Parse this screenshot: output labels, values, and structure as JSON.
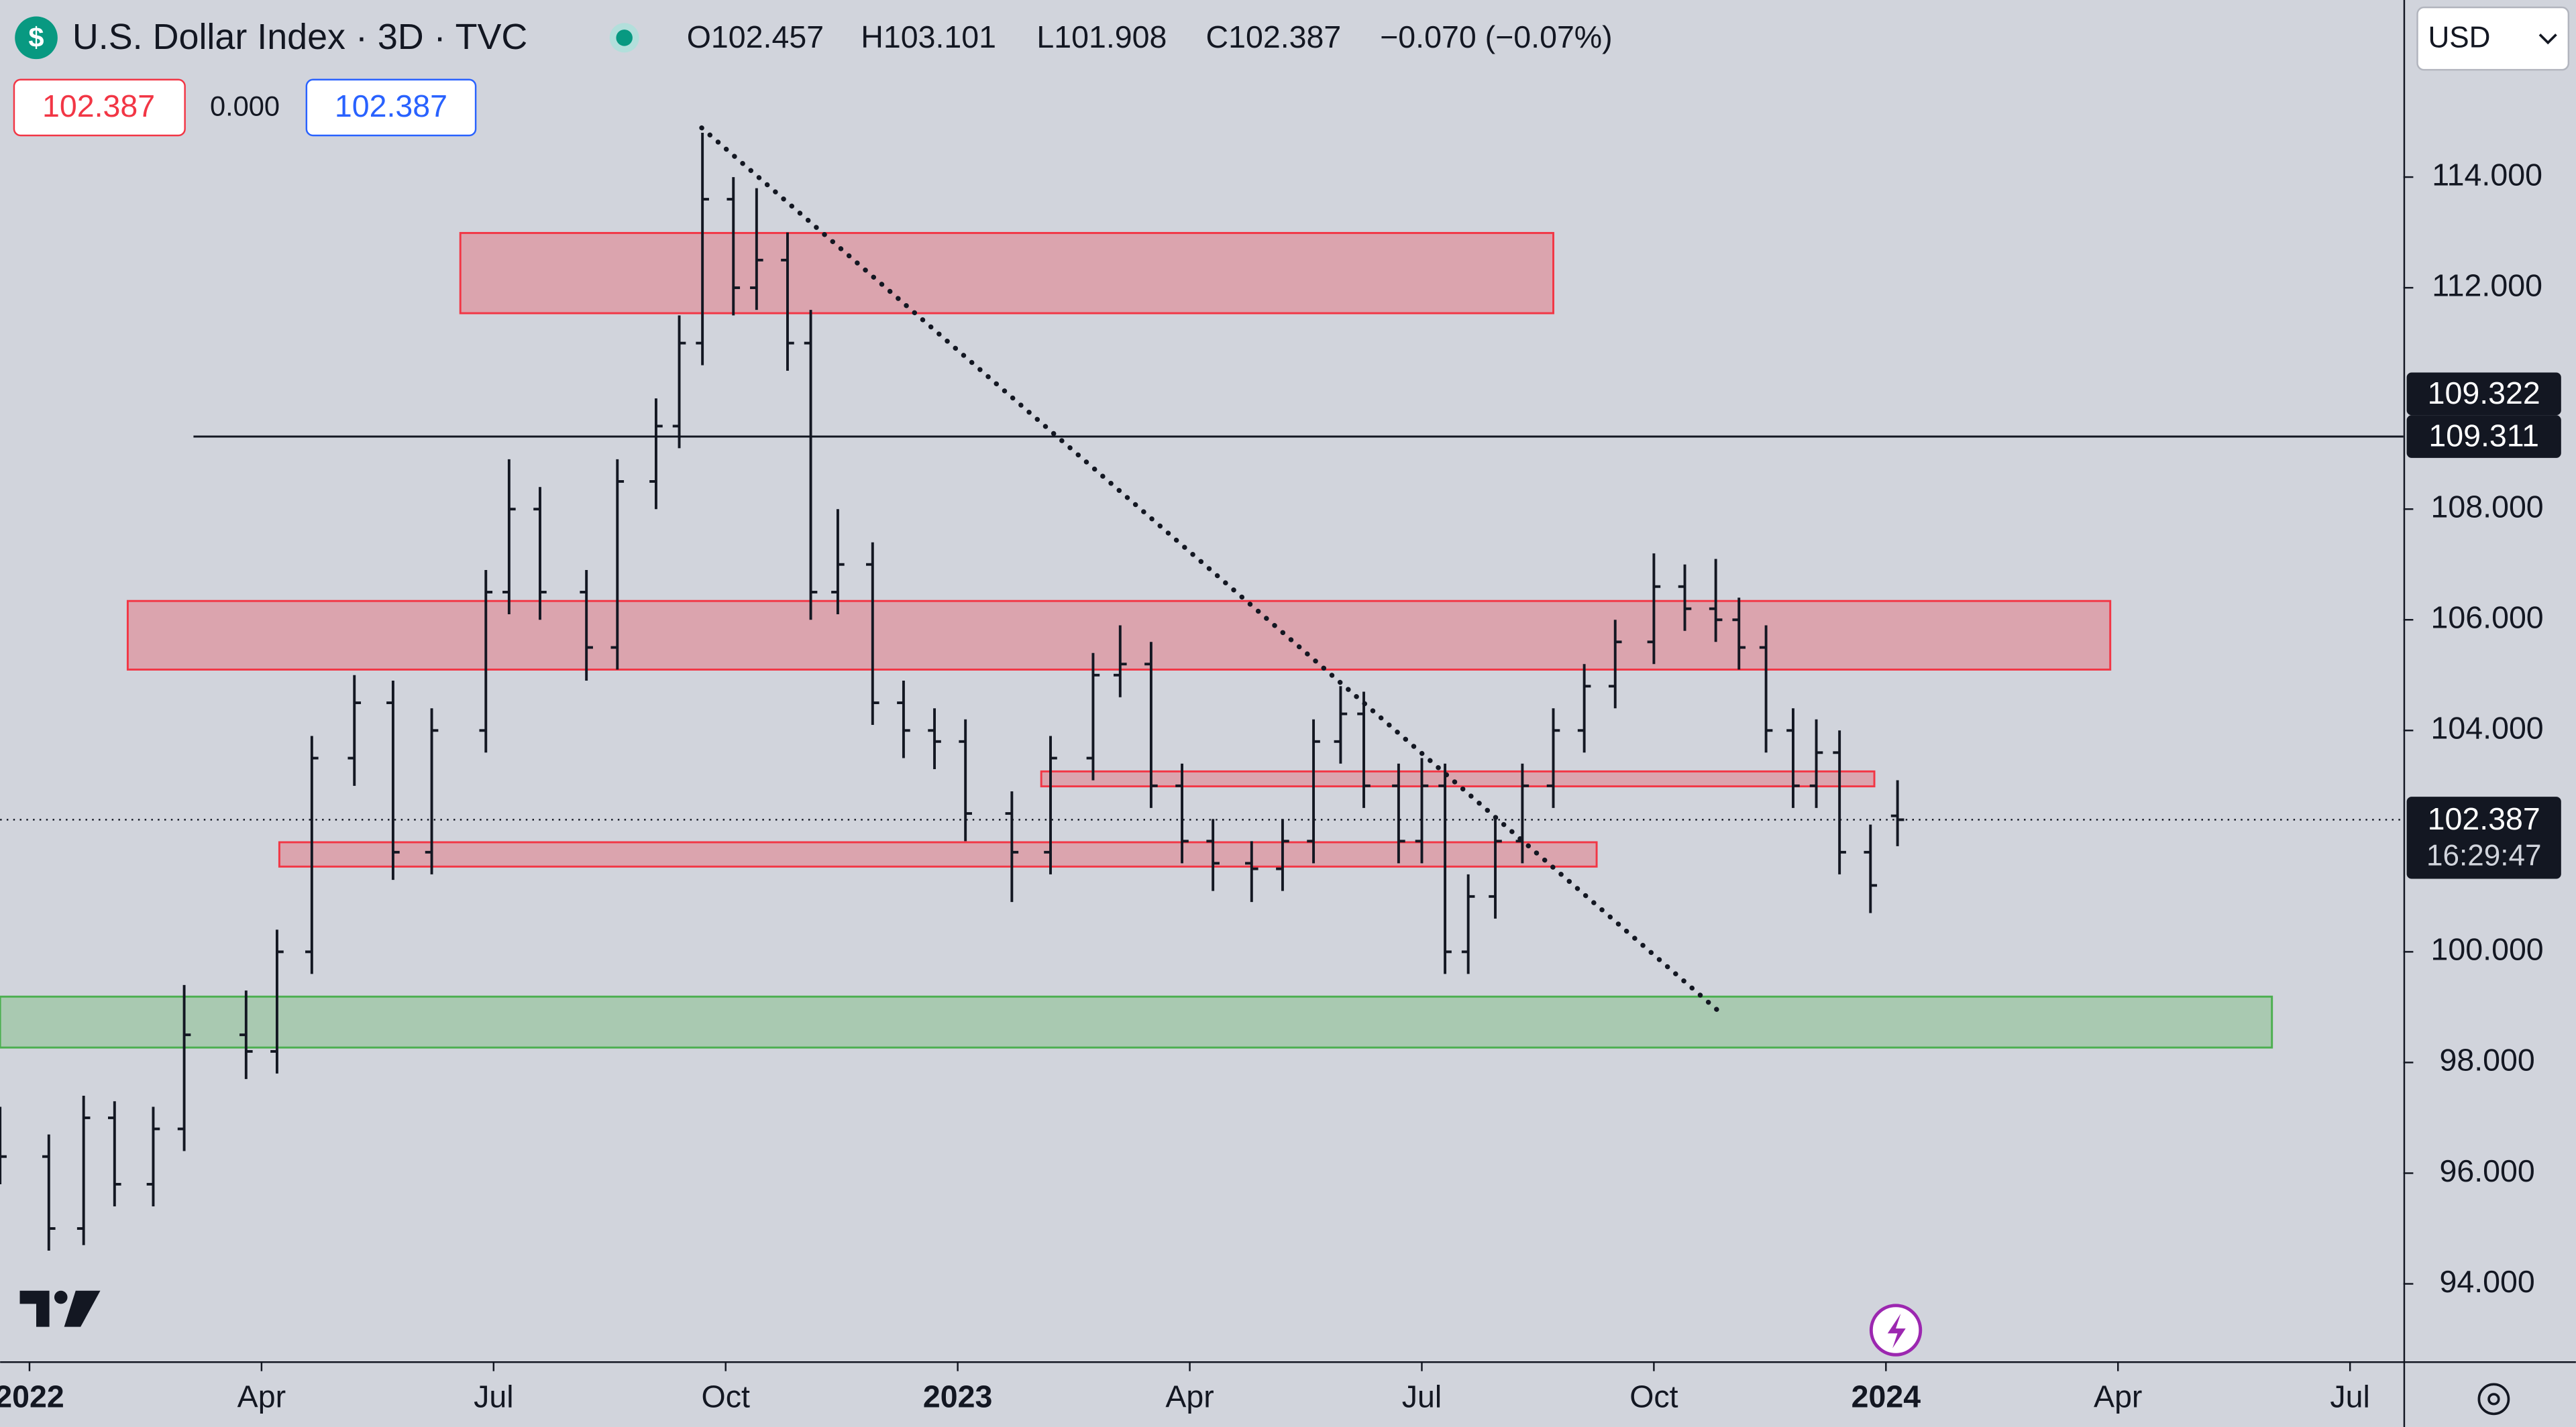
{
  "header": {
    "symbol": "U.S. Dollar Index · 3D · TVC",
    "open": "O102.457",
    "high": "H103.101",
    "low": "L101.908",
    "close": "C102.387",
    "change": "−0.070 (−0.07%)",
    "sell": "102.387",
    "spread": "0.000",
    "buy": "102.387",
    "currency": "USD"
  },
  "chart_data": {
    "type": "ohlc",
    "color": "#131722",
    "x": [
      -0.38,
      0.25,
      0.7,
      1.1,
      1.6,
      2.0,
      2.8,
      3.2,
      3.65,
      4.2,
      4.7,
      5.2,
      5.9,
      6.2,
      6.6,
      7.2,
      7.6,
      8.1,
      8.4,
      8.7,
      9.1,
      9.4,
      9.8,
      10.1,
      10.45,
      10.9,
      11.3,
      11.7,
      12.1,
      12.7,
      13.2,
      13.75,
      14.1,
      14.5,
      14.9,
      15.3,
      15.8,
      16.2,
      16.6,
      16.95,
      17.25,
      17.7,
      18.0,
      18.3,
      18.6,
      18.95,
      19.3,
      19.7,
      20.1,
      20.5,
      21.0,
      21.4,
      21.8,
      22.1,
      22.45,
      22.8,
      23.1,
      23.4,
      23.8,
      24.15
    ],
    "open": [
      96.8,
      96.3,
      95.0,
      97.0,
      95.8,
      96.8,
      98.5,
      98.2,
      100.0,
      103.5,
      104.5,
      101.8,
      104.0,
      106.5,
      108.0,
      106.5,
      105.5,
      108.5,
      109.5,
      111.0,
      113.6,
      112.0,
      112.5,
      111.0,
      106.5,
      107.0,
      104.5,
      104.0,
      103.8,
      102.5,
      101.8,
      103.5,
      105.0,
      105.2,
      103.0,
      102.0,
      101.6,
      101.5,
      102.0,
      103.8,
      104.3,
      103.0,
      102.0,
      103.0,
      100.0,
      101.0,
      102.0,
      103.0,
      104.0,
      104.8,
      105.6,
      106.6,
      106.2,
      106.0,
      105.5,
      104.0,
      103.0,
      103.6,
      101.8,
      102.457
    ],
    "high": [
      97.2,
      96.7,
      97.4,
      97.3,
      97.2,
      99.4,
      99.3,
      100.4,
      103.9,
      105.0,
      104.9,
      104.4,
      106.9,
      108.9,
      108.4,
      106.9,
      108.9,
      110.0,
      111.5,
      114.8,
      114.0,
      113.8,
      113.0,
      111.6,
      108.0,
      107.4,
      104.9,
      104.4,
      104.2,
      102.9,
      103.9,
      105.4,
      105.9,
      105.6,
      103.4,
      102.4,
      102.0,
      102.4,
      104.2,
      104.8,
      104.7,
      103.4,
      103.5,
      103.4,
      101.4,
      102.4,
      103.4,
      104.4,
      105.2,
      106.0,
      107.2,
      107.0,
      107.1,
      106.4,
      105.9,
      104.4,
      104.2,
      104.0,
      102.3,
      103.101
    ],
    "low": [
      95.8,
      94.6,
      94.7,
      95.4,
      95.4,
      96.4,
      97.7,
      97.8,
      99.6,
      103.0,
      101.3,
      101.4,
      103.6,
      106.1,
      106.0,
      104.9,
      105.1,
      108.0,
      109.1,
      110.6,
      111.5,
      111.6,
      110.5,
      106.0,
      106.1,
      104.1,
      103.5,
      103.3,
      102.0,
      100.9,
      101.4,
      103.1,
      104.6,
      102.6,
      101.6,
      101.1,
      100.9,
      101.1,
      101.6,
      103.4,
      102.6,
      101.6,
      101.6,
      99.6,
      99.6,
      100.6,
      101.6,
      102.6,
      103.6,
      104.4,
      105.2,
      105.8,
      105.6,
      105.1,
      103.6,
      102.6,
      102.6,
      101.4,
      100.7,
      101.908
    ],
    "close": [
      96.3,
      95.0,
      97.0,
      95.8,
      96.8,
      98.5,
      98.2,
      100.0,
      103.5,
      104.5,
      101.8,
      104.0,
      106.5,
      108.0,
      106.5,
      105.5,
      108.5,
      109.5,
      111.0,
      113.6,
      112.0,
      112.5,
      111.0,
      106.5,
      107.0,
      104.5,
      104.0,
      103.8,
      102.5,
      101.8,
      103.5,
      105.0,
      105.2,
      103.0,
      102.0,
      101.6,
      101.5,
      102.0,
      103.8,
      104.3,
      103.0,
      102.0,
      103.0,
      100.0,
      101.0,
      102.0,
      103.0,
      104.0,
      104.8,
      105.6,
      106.6,
      106.2,
      106.0,
      105.5,
      104.0,
      103.0,
      103.6,
      101.8,
      101.2,
      102.387
    ],
    "xlim": [
      -0.38,
      30.69
    ],
    "ylim": [
      92.6,
      117.2
    ],
    "xticks": [
      {
        "value": 0,
        "label": "2022"
      },
      {
        "value": 3,
        "label": "Apr"
      },
      {
        "value": 6,
        "label": "Jul"
      },
      {
        "value": 9,
        "label": "Oct"
      },
      {
        "value": 12,
        "label": "2023"
      },
      {
        "value": 15,
        "label": "Apr"
      },
      {
        "value": 18,
        "label": "Jul"
      },
      {
        "value": 21,
        "label": "Oct"
      },
      {
        "value": 24,
        "label": "2024"
      },
      {
        "value": 27,
        "label": "Apr"
      },
      {
        "value": 30,
        "label": "Jul"
      }
    ],
    "yticks": [
      {
        "value": 94,
        "label": "94.000"
      },
      {
        "value": 96,
        "label": "96.000"
      },
      {
        "value": 98,
        "label": "98.000"
      },
      {
        "value": 100,
        "label": "100.000"
      },
      {
        "value": 104,
        "label": "104.000"
      },
      {
        "value": 106,
        "label": "106.000"
      },
      {
        "value": 108,
        "label": "108.000"
      },
      {
        "value": 112,
        "label": "112.000"
      },
      {
        "value": 114,
        "label": "114.000"
      }
    ],
    "zones": [
      {
        "x": [
          5.57,
          19.7
        ],
        "y": [
          111.54,
          112.99
        ],
        "color": "#f23645"
      },
      {
        "x": [
          1.27,
          26.9
        ],
        "y": [
          105.1,
          106.34
        ],
        "color": "#f23645"
      },
      {
        "x": [
          13.08,
          23.85
        ],
        "y": [
          102.99,
          103.26
        ],
        "color": "#f23645"
      },
      {
        "x": [
          3.23,
          20.26
        ],
        "y": [
          101.54,
          101.98
        ],
        "color": "#f23645"
      },
      {
        "x": [
          -0.38,
          28.99
        ],
        "y": [
          98.27,
          99.19
        ],
        "color": "#4caf50"
      }
    ],
    "hline": {
      "x": 2.12,
      "value": 109.311,
      "label": "109.311"
    },
    "alert": {
      "value": 109.322,
      "label": "109.322"
    },
    "trendline": {
      "x": [
        8.69,
        21.86
      ],
      "y": [
        114.89,
        98.9
      ]
    },
    "last_price": {
      "value": 102.387,
      "label": "102.387",
      "countdown": "16:29:47"
    }
  }
}
